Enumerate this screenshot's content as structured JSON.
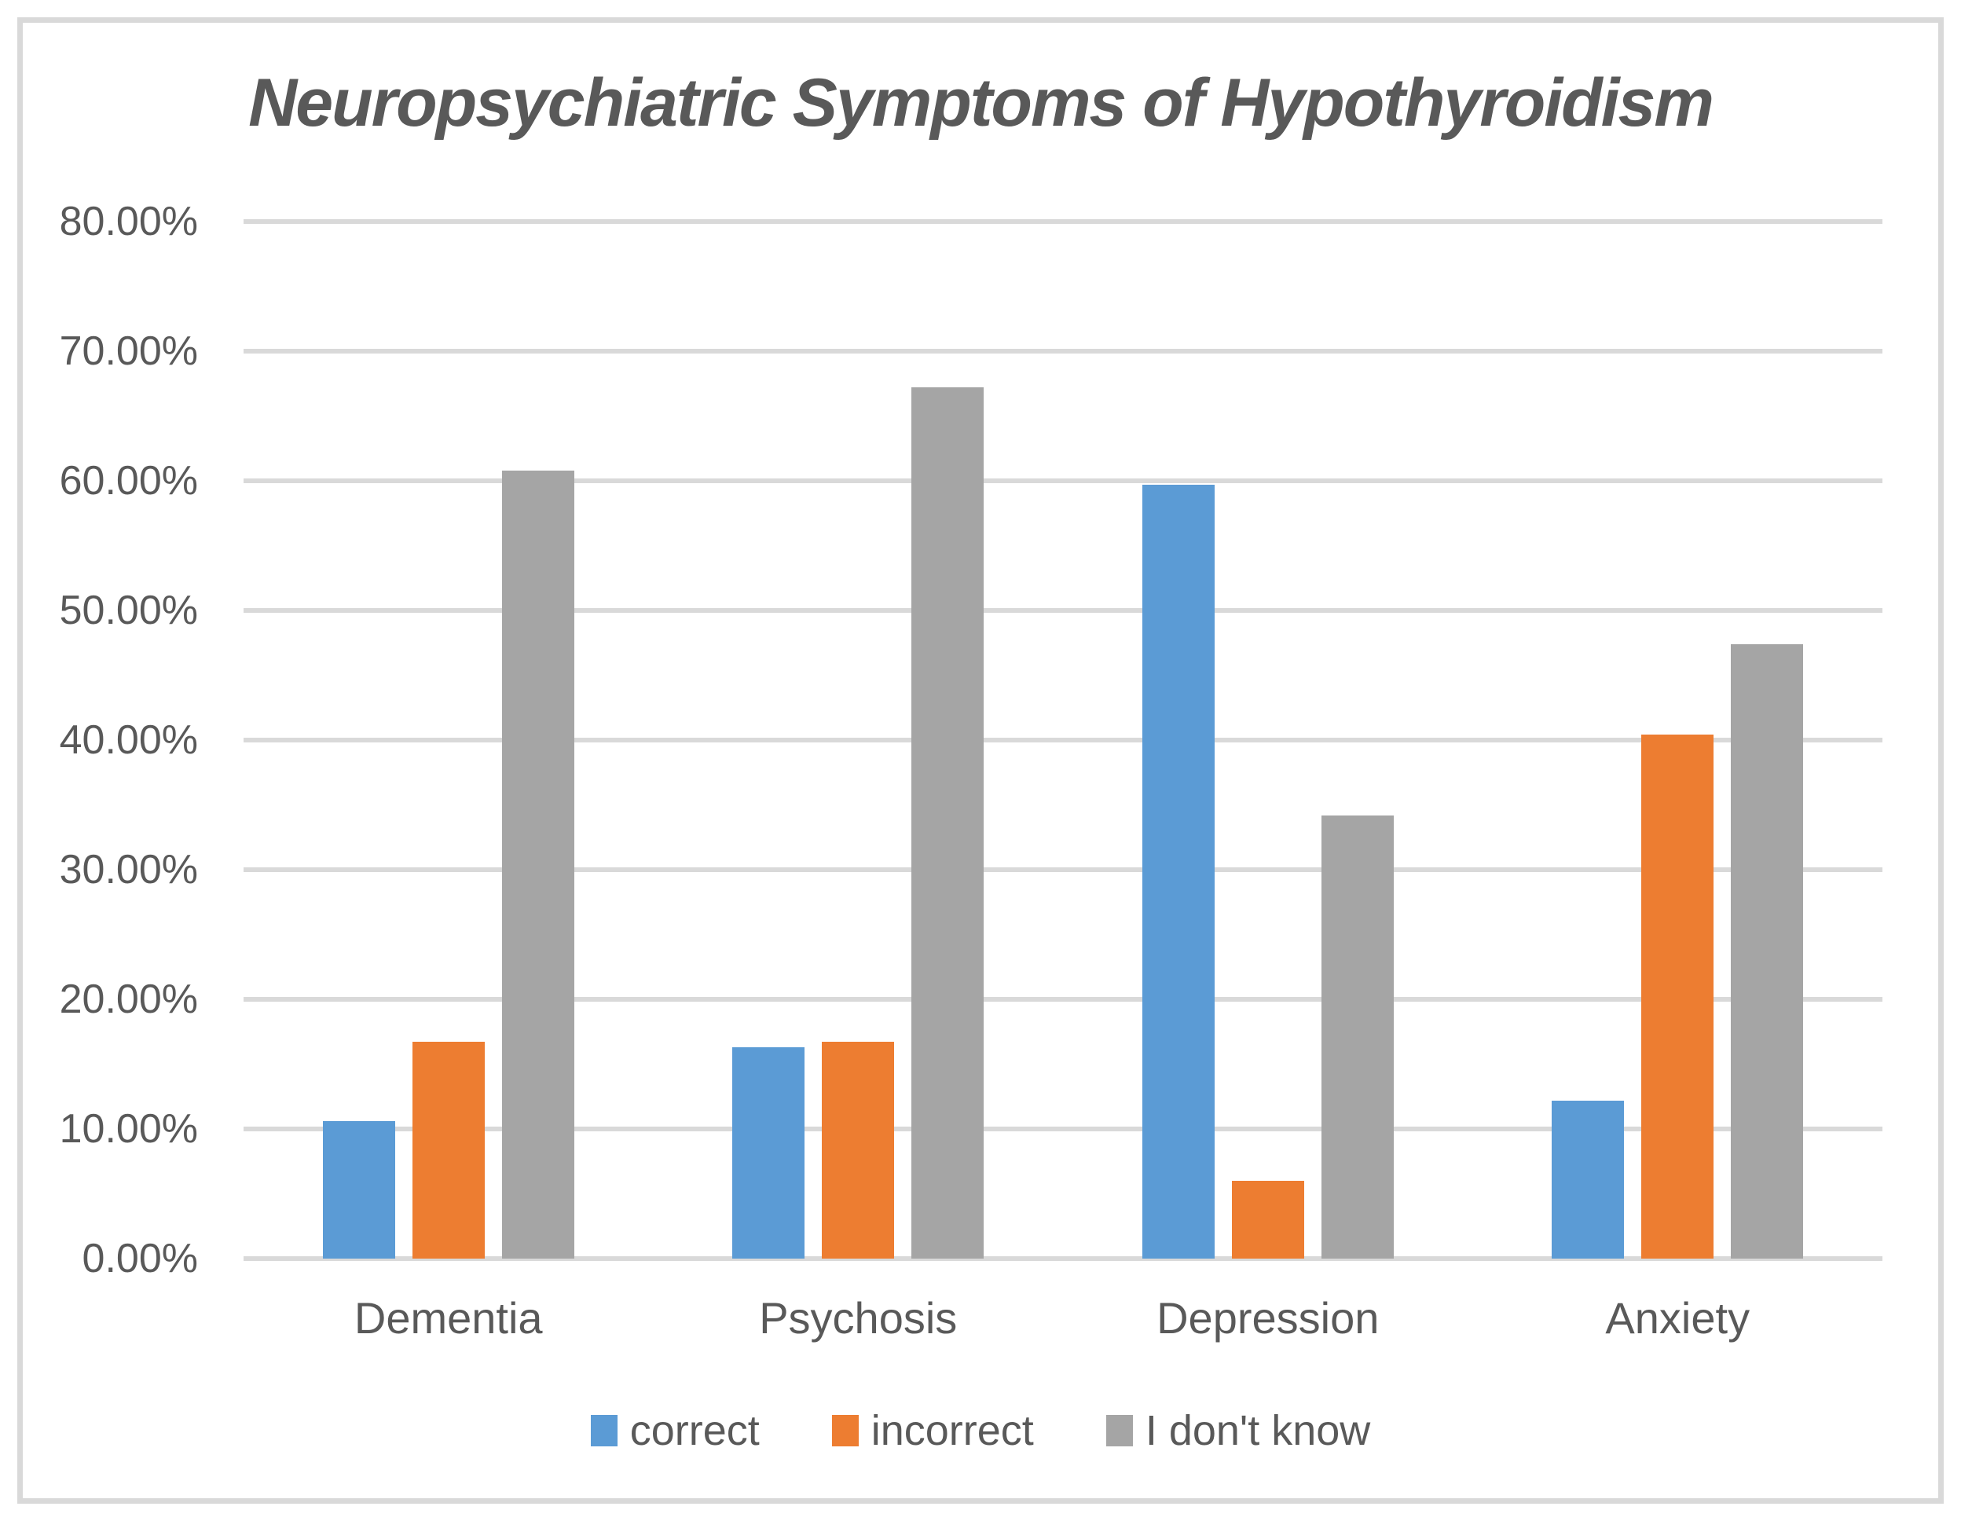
{
  "chart_data": {
    "type": "bar",
    "title": "Neuropsychiatric Symptoms of Hypothyroidism",
    "categories": [
      "Dementia",
      "Psychosis",
      "Depression",
      "Anxiety"
    ],
    "series": [
      {
        "name": "correct",
        "color": "#5b9bd5",
        "values": [
          10.6,
          16.3,
          59.7,
          12.2
        ]
      },
      {
        "name": "incorrect",
        "color": "#ed7d31",
        "values": [
          16.7,
          16.7,
          6.0,
          40.4
        ]
      },
      {
        "name": "I don't know",
        "color": "#a5a5a5",
        "values": [
          60.8,
          67.2,
          34.2,
          47.4
        ]
      }
    ],
    "xlabel": "",
    "ylabel": "",
    "ylim": [
      0,
      80
    ],
    "y_tick_step": 10,
    "y_ticks": [
      "0.00%",
      "10.00%",
      "20.00%",
      "30.00%",
      "40.00%",
      "50.00%",
      "60.00%",
      "70.00%",
      "80.00%"
    ],
    "grid": "horizontal",
    "legend_position": "bottom",
    "colors": {
      "gridline": "#d9d9d9",
      "frame_border": "#d9d9d9",
      "text": "#595959",
      "background": "#ffffff"
    }
  }
}
